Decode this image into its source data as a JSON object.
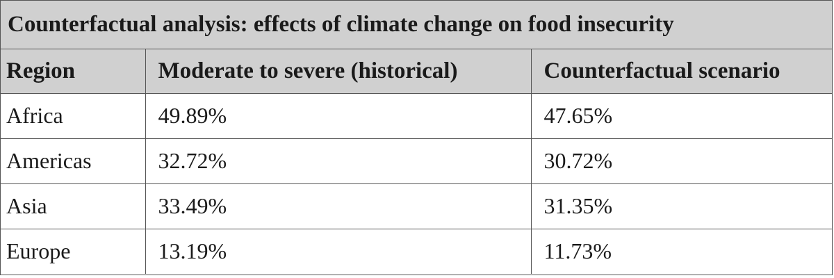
{
  "table": {
    "caption": "Counterfactual analysis: effects of climate change on food insecurity",
    "headers": [
      "Region",
      "Moderate to severe (historical)",
      "Counterfactual scenario"
    ],
    "rows": [
      [
        "Africa",
        "49.89%",
        "47.65%"
      ],
      [
        "Americas",
        "32.72%",
        "30.72%"
      ],
      [
        "Asia",
        "33.49%",
        "31.35%"
      ],
      [
        "Europe",
        "13.19%",
        "11.73%"
      ]
    ]
  },
  "colors": {
    "header_background": "#d0d0d0",
    "border": "#555555",
    "text": "#1a1a1a"
  }
}
